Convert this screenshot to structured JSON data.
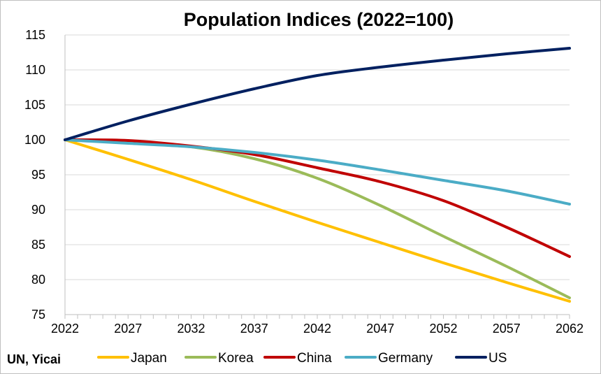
{
  "chart_data": {
    "type": "line",
    "title": "Population Indices (2022=100)",
    "source": "UN, Yicai",
    "xlabel": "",
    "ylabel": "",
    "xlim": [
      2022,
      2062
    ],
    "ylim": [
      75,
      115
    ],
    "x_ticks": [
      2022,
      2027,
      2032,
      2037,
      2042,
      2047,
      2052,
      2057,
      2062
    ],
    "y_ticks": [
      75,
      80,
      85,
      90,
      95,
      100,
      105,
      110,
      115
    ],
    "grid": true,
    "legend_position": "bottom",
    "x": [
      2022,
      2027,
      2032,
      2037,
      2042,
      2047,
      2052,
      2057,
      2062
    ],
    "series": [
      {
        "name": "Japan",
        "color": "#ffc000",
        "values": [
          100,
          97.2,
          94.3,
          91.2,
          88.2,
          85.3,
          82.4,
          79.6,
          76.9
        ]
      },
      {
        "name": "Korea",
        "color": "#9bbb59",
        "values": [
          100,
          99.6,
          99.0,
          97.3,
          94.5,
          90.6,
          86.2,
          81.9,
          77.4
        ]
      },
      {
        "name": "China",
        "color": "#c00000",
        "values": [
          100,
          99.9,
          99.1,
          97.9,
          96.0,
          94.0,
          91.3,
          87.5,
          83.3
        ]
      },
      {
        "name": "Germany",
        "color": "#4bacc6",
        "values": [
          100,
          99.5,
          99.0,
          98.2,
          97.1,
          95.7,
          94.2,
          92.7,
          90.8
        ]
      },
      {
        "name": "US",
        "color": "#002060",
        "values": [
          100,
          102.7,
          105.1,
          107.3,
          109.2,
          110.4,
          111.4,
          112.3,
          113.1
        ]
      }
    ]
  }
}
